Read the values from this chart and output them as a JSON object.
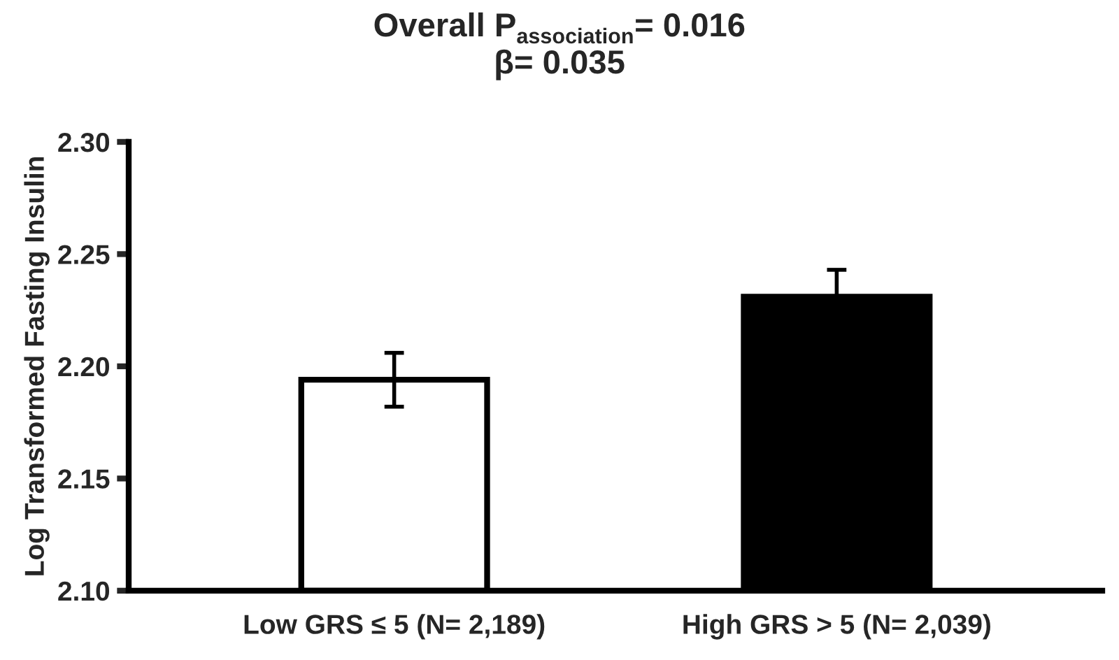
{
  "chart_data": {
    "type": "bar",
    "title": "Overall P$_{association}$= 0.016",
    "subtitle": "β= 0.035",
    "ylabel": "Log Transformed Fasting Insulin",
    "categories": [
      "Low GRS ≤ 5 (N= 2,189)",
      "High GRS > 5 (N= 2,039)"
    ],
    "values": [
      2.194,
      2.231
    ],
    "errors": [
      0.012,
      0.012
    ],
    "colors": [
      "#ffffff",
      "#000000"
    ],
    "ylim": [
      2.1,
      2.3
    ],
    "yticks": [
      {
        "value": 2.1,
        "label": "2.10"
      },
      {
        "value": 2.15,
        "label": "2.15"
      },
      {
        "value": 2.2,
        "label": "2.20"
      },
      {
        "value": 2.25,
        "label": "2.25"
      },
      {
        "value": 2.3,
        "label": "2.30"
      }
    ],
    "grid": false,
    "legend": false
  }
}
